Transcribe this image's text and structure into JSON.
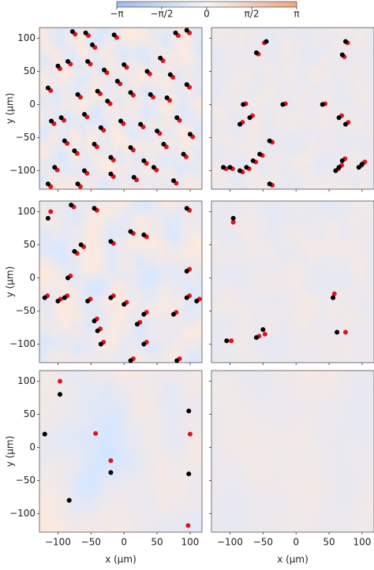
{
  "chart_data": {
    "type": "scatter",
    "colorbar": {
      "clim": [
        -3.14159,
        3.14159
      ],
      "colormap": [
        "#9db9ee",
        "#f4f4f4",
        "#efa581"
      ],
      "ticks": [
        {
          "value": -3.14159,
          "label": "−π"
        },
        {
          "value": -1.5708,
          "label": "−π/2"
        },
        0,
        {
          "value": 1.5708,
          "label": "π/2"
        },
        {
          "value": 3.14159,
          "label": "π"
        }
      ]
    },
    "xlabel": "x (μm)",
    "ylabel": "y (μm)",
    "xlim": [
      -128,
      118
    ],
    "ylim": [
      -128,
      116
    ],
    "xticks": [
      {
        "value": -100,
        "label": "−100"
      },
      {
        "value": -50,
        "label": "−50"
      },
      0,
      50,
      100
    ],
    "yticks": [
      {
        "value": -100,
        "label": "−100"
      },
      {
        "value": -50,
        "label": "−50"
      },
      0,
      50,
      100
    ],
    "panels": [
      {
        "series": [
          {
            "color": "#e0141c",
            "x": [
              -74,
              -54,
              -11,
              82,
              99,
              -97,
              -81,
              -51,
              -44,
              -26,
              -6,
              4,
              39,
              59,
              74,
              -111,
              -66,
              -36,
              -21,
              14,
              44,
              69,
              99,
              -106,
              -91,
              -56,
              -31,
              -1,
              29,
              54,
              84,
              104,
              -86,
              -71,
              -41,
              -16,
              14,
              34,
              64,
              94,
              -101,
              -56,
              -16,
              19,
              49,
              79,
              -111,
              -66
            ],
            "y": [
              106,
              104,
              101,
              104,
              108,
              54,
              61,
              61,
              86,
              48,
              31,
              56,
              46,
              66,
              41,
              21,
              11,
              16,
              1,
              14,
              11,
              6,
              26,
              -29,
              -24,
              -19,
              -39,
              -29,
              -34,
              -44,
              -24,
              -49,
              -59,
              -74,
              -64,
              -84,
              -69,
              -89,
              -64,
              -79,
              -99,
              -104,
              -109,
              -114,
              -99,
              -119,
              -124,
              -124
            ]
          },
          {
            "color": "#000000",
            "x": [
              -78,
              -58,
              -15,
              78,
              95,
              -100,
              -85,
              -55,
              -48,
              -30,
              -10,
              0,
              35,
              55,
              70,
              -115,
              -70,
              -40,
              -25,
              10,
              40,
              65,
              95,
              -110,
              -95,
              -60,
              -35,
              -5,
              25,
              50,
              80,
              100,
              -90,
              -75,
              -45,
              -20,
              10,
              30,
              60,
              90,
              -105,
              -60,
              -20,
              15,
              45,
              75,
              -115,
              -70
            ],
            "y": [
              110,
              108,
              105,
              108,
              112,
              58,
              65,
              65,
              90,
              52,
              35,
              60,
              50,
              70,
              45,
              25,
              15,
              20,
              5,
              18,
              15,
              10,
              30,
              -25,
              -20,
              -15,
              -35,
              -25,
              -30,
              -40,
              -20,
              -45,
              -55,
              -70,
              -60,
              -80,
              -65,
              -85,
              -60,
              -75,
              -95,
              -100,
              -105,
              -110,
              -95,
              -115,
              -120,
              -120
            ]
          }
        ]
      },
      {
        "series": [
          {
            "color": "#e0141c",
            "x": [
              -48,
              -57,
              78,
              73,
              -106,
              -96,
              -61,
              -51,
              -71,
              -81,
              -36,
              -36,
              -16,
              -76,
              -81,
              -66,
              44,
              69,
              79,
              64,
              69,
              74,
              99,
              104
            ],
            "y": [
              93,
              76,
              93,
              72,
              -97,
              -97,
              -87,
              -77,
              -97,
              -102,
              -57,
              -122,
              1,
              1,
              -27,
              -17,
              1,
              -17,
              -27,
              -97,
              -92,
              -82,
              -92,
              -87
            ]
          },
          {
            "color": "#000000",
            "x": [
              -45,
              -60,
              75,
              70,
              -110,
              -100,
              -65,
              -55,
              -75,
              -85,
              -40,
              -40,
              -20,
              -80,
              -85,
              -70,
              40,
              65,
              75,
              60,
              65,
              70,
              95,
              100
            ],
            "y": [
              95,
              78,
              95,
              75,
              -95,
              -95,
              -85,
              -75,
              -95,
              -100,
              -55,
              -120,
              0,
              0,
              -30,
              -20,
              0,
              -20,
              -30,
              -100,
              -95,
              -85,
              -95,
              -90
            ]
          }
        ]
      },
      {
        "series": [
          {
            "color": "#e0141c",
            "x": [
              -111,
              -76,
              -41,
              -61,
              -71,
              -16,
              14,
              34,
              99,
              -96,
              -86,
              -16,
              -51,
              4,
              -41,
              -36,
              24,
              34,
              -116,
              79,
              99,
              99,
              114,
              14,
              84,
              -31,
              34,
              -81
            ],
            "y": [
              100,
              107,
              102,
              47,
              37,
              52,
              67,
              62,
              102,
              -32,
              -27,
              -27,
              -32,
              -37,
              -62,
              -77,
              -67,
              -52,
              -27,
              -52,
              -27,
              13,
              -32,
              -122,
              -122,
              -97,
              -97,
              3
            ]
          },
          {
            "color": "#000000",
            "x": [
              -115,
              -80,
              -45,
              -65,
              -75,
              -20,
              10,
              30,
              95,
              -100,
              -90,
              -20,
              -55,
              0,
              -45,
              -40,
              20,
              30,
              -120,
              75,
              95,
              95,
              110,
              10,
              80,
              -35,
              30,
              -85
            ],
            "y": [
              90,
              110,
              105,
              50,
              40,
              55,
              70,
              65,
              105,
              -35,
              -30,
              -30,
              -35,
              -40,
              -65,
              -80,
              -70,
              -55,
              -30,
              -55,
              -30,
              10,
              -35,
              -125,
              -125,
              -100,
              -100,
              0
            ]
          }
        ]
      },
      {
        "series": [
          {
            "color": "#e0141c",
            "x": [
              -95,
              -98,
              -56,
              -47,
              58,
              75
            ],
            "y": [
              84,
              -95,
              -88,
              -85,
              -24,
              -82
            ]
          },
          {
            "color": "#000000",
            "x": [
              -95,
              -105,
              -60,
              -50,
              56,
              62
            ],
            "y": [
              90,
              -95,
              -90,
              -78,
              -30,
              -82
            ]
          }
        ]
      },
      {
        "series": [
          {
            "color": "#e0141c",
            "x": [
              -97,
              -43,
              -20,
              100,
              97
            ],
            "y": [
              100,
              21,
              -20,
              20,
              -118
            ]
          },
          {
            "color": "#000000",
            "x": [
              -120,
              -97,
              -83,
              -20,
              98,
              98
            ],
            "y": [
              20,
              80,
              -80,
              -38,
              55,
              -40
            ]
          }
        ]
      },
      {
        "series": [
          {
            "color": "#e0141c",
            "x": [],
            "y": []
          },
          {
            "color": "#000000",
            "x": [],
            "y": []
          }
        ]
      }
    ]
  }
}
